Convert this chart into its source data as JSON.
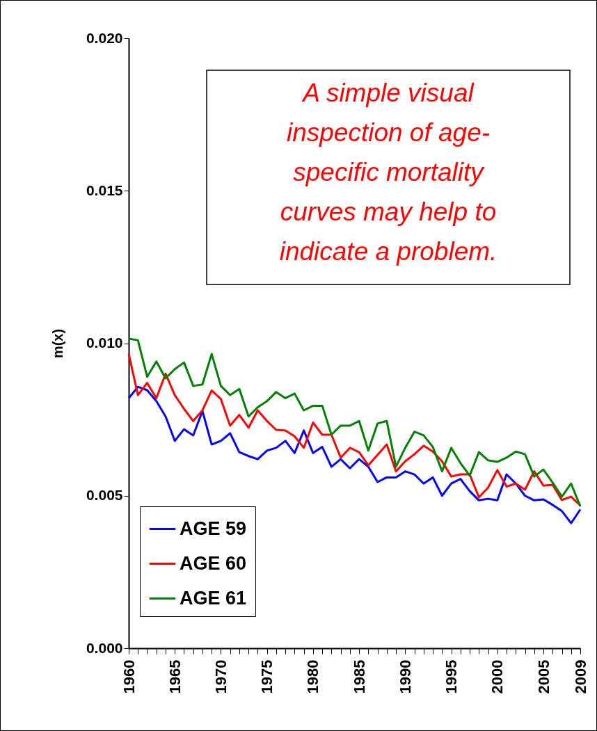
{
  "chart_data": {
    "type": "line",
    "ylabel": "m(x)",
    "annotations": [
      "A simple visual inspection of age-specific mortality curves may help to indicate a problem."
    ],
    "x": [
      1960,
      1961,
      1962,
      1963,
      1964,
      1965,
      1966,
      1967,
      1968,
      1969,
      1970,
      1971,
      1972,
      1973,
      1974,
      1975,
      1976,
      1977,
      1978,
      1979,
      1980,
      1981,
      1982,
      1983,
      1984,
      1985,
      1986,
      1987,
      1988,
      1989,
      1990,
      1991,
      1992,
      1993,
      1994,
      1995,
      1996,
      1997,
      1998,
      1999,
      2000,
      2001,
      2002,
      2003,
      2004,
      2005,
      2006,
      2007,
      2008,
      2009
    ],
    "series": [
      {
        "name": "AGE 59",
        "color": "#0000ff",
        "values": [
          0.0082,
          0.00857,
          0.00846,
          0.0081,
          0.0076,
          0.0068,
          0.00718,
          0.00698,
          0.00778,
          0.00668,
          0.0068,
          0.00705,
          0.00643,
          0.0063,
          0.0062,
          0.00648,
          0.00657,
          0.0068,
          0.0064,
          0.00714,
          0.0064,
          0.0066,
          0.00595,
          0.0062,
          0.0059,
          0.0062,
          0.00595,
          0.00545,
          0.0056,
          0.0056,
          0.0058,
          0.0057,
          0.0054,
          0.0056,
          0.005,
          0.0054,
          0.00555,
          0.00515,
          0.00485,
          0.0049,
          0.00485,
          0.0057,
          0.0054,
          0.005,
          0.00485,
          0.00488,
          0.0047,
          0.0045,
          0.0041,
          0.00455
        ]
      },
      {
        "name": "AGE 60",
        "color": "#ff0000",
        "values": [
          0.00965,
          0.0083,
          0.0087,
          0.0082,
          0.009,
          0.0083,
          0.00785,
          0.00745,
          0.0078,
          0.00845,
          0.00817,
          0.0073,
          0.00765,
          0.00723,
          0.0078,
          0.00745,
          0.00716,
          0.00714,
          0.00695,
          0.00657,
          0.0074,
          0.007,
          0.007,
          0.00625,
          0.00657,
          0.00643,
          0.006,
          0.00634,
          0.00668,
          0.0058,
          0.00613,
          0.00636,
          0.00664,
          0.00645,
          0.00613,
          0.00563,
          0.0057,
          0.0057,
          0.00495,
          0.00527,
          0.00584,
          0.0053,
          0.0054,
          0.0052,
          0.0058,
          0.00533,
          0.00536,
          0.00486,
          0.00497,
          0.00468
        ]
      },
      {
        "name": "AGE 61",
        "color": "#008000",
        "values": [
          0.01015,
          0.0101,
          0.0089,
          0.0094,
          0.00885,
          0.00915,
          0.00937,
          0.0086,
          0.00865,
          0.00965,
          0.0086,
          0.0083,
          0.0085,
          0.0076,
          0.0079,
          0.0081,
          0.0084,
          0.0082,
          0.00835,
          0.0078,
          0.00795,
          0.00795,
          0.007,
          0.0073,
          0.0073,
          0.00745,
          0.00648,
          0.00737,
          0.00745,
          0.00595,
          0.00657,
          0.0071,
          0.00698,
          0.0066,
          0.0058,
          0.00657,
          0.00607,
          0.00566,
          0.00643,
          0.00616,
          0.00611,
          0.00625,
          0.00645,
          0.00636,
          0.00563,
          0.00586,
          0.00543,
          0.00497,
          0.0054,
          0.00465
        ]
      }
    ],
    "xlim": [
      1960,
      2009
    ],
    "xticks": [
      1960,
      {
        "value": 1961,
        "label": null
      },
      {
        "value": 1962,
        "label": null
      },
      {
        "value": 1963,
        "label": null
      },
      {
        "value": 1964,
        "label": null
      },
      1965,
      {
        "value": 1966,
        "label": null
      },
      {
        "value": 1967,
        "label": null
      },
      {
        "value": 1968,
        "label": null
      },
      {
        "value": 1969,
        "label": null
      },
      1970,
      {
        "value": 1971,
        "label": null
      },
      {
        "value": 1972,
        "label": null
      },
      {
        "value": 1973,
        "label": null
      },
      {
        "value": 1974,
        "label": null
      },
      1975,
      {
        "value": 1976,
        "label": null
      },
      {
        "value": 1977,
        "label": null
      },
      {
        "value": 1978,
        "label": null
      },
      {
        "value": 1979,
        "label": null
      },
      1980,
      {
        "value": 1981,
        "label": null
      },
      {
        "value": 1982,
        "label": null
      },
      {
        "value": 1983,
        "label": null
      },
      {
        "value": 1984,
        "label": null
      },
      1985,
      {
        "value": 1986,
        "label": null
      },
      {
        "value": 1987,
        "label": null
      },
      {
        "value": 1988,
        "label": null
      },
      {
        "value": 1989,
        "label": null
      },
      1990,
      {
        "value": 1991,
        "label": null
      },
      {
        "value": 1992,
        "label": null
      },
      {
        "value": 1993,
        "label": null
      },
      {
        "value": 1994,
        "label": null
      },
      1995,
      {
        "value": 1996,
        "label": null
      },
      {
        "value": 1997,
        "label": null
      },
      {
        "value": 1998,
        "label": null
      },
      {
        "value": 1999,
        "label": null
      },
      2000,
      {
        "value": 2001,
        "label": null
      },
      {
        "value": 2002,
        "label": null
      },
      {
        "value": 2003,
        "label": null
      },
      {
        "value": 2004,
        "label": null
      },
      2005,
      {
        "value": 2006,
        "label": null
      },
      {
        "value": 2007,
        "label": null
      },
      {
        "value": 2008,
        "label": null
      },
      2009
    ],
    "ylim": [
      0,
      0.02
    ],
    "yticks": [
      {
        "value": 0,
        "label": "0.000"
      },
      {
        "value": 0.005,
        "label": "0.005"
      },
      {
        "value": 0.01,
        "label": "0.010"
      },
      {
        "value": 0.015,
        "label": "0.015"
      },
      {
        "value": 0.02,
        "label": "0.020"
      }
    ],
    "legend": "bottom left",
    "grid": false
  }
}
